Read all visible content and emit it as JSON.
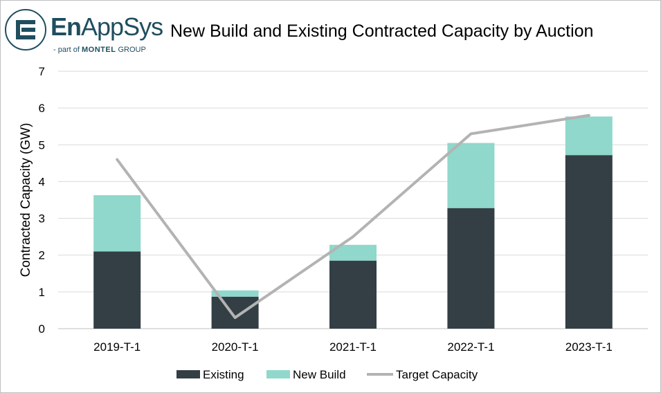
{
  "logo": {
    "brand_bold": "En",
    "brand_light": "AppSys",
    "tagline_prefix": "- part of ",
    "tagline_brand": "MONTEL",
    "tagline_suffix": " GROUP",
    "color": "#1f4e5f"
  },
  "chart_data": {
    "type": "bar",
    "stacked": true,
    "title": "New Build and Existing Contracted Capacity by Auction",
    "xlabel": "",
    "ylabel": "Contracted Capacity (GW)",
    "ylim": [
      0,
      7
    ],
    "yticks": [
      0,
      1,
      2,
      3,
      4,
      5,
      6,
      7
    ],
    "grid": true,
    "legend_position": "bottom",
    "categories": [
      "2019-T-1",
      "2020-T-1",
      "2021-T-1",
      "2022-T-1",
      "2023-T-1"
    ],
    "series": [
      {
        "name": "Existing",
        "type": "bar",
        "color": "#333f45",
        "values": [
          2.1,
          0.87,
          1.85,
          3.28,
          4.72
        ]
      },
      {
        "name": "New Build",
        "type": "bar",
        "color": "#8fd8cb",
        "values": [
          1.53,
          0.17,
          0.43,
          1.77,
          1.05
        ]
      },
      {
        "name": "Target Capacity",
        "type": "line",
        "color": "#b3b3b3",
        "values": [
          4.6,
          0.3,
          2.5,
          5.3,
          5.8
        ]
      }
    ]
  }
}
